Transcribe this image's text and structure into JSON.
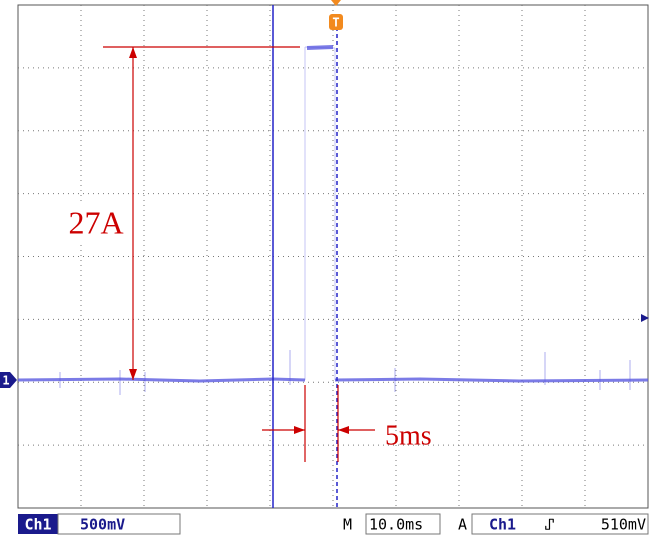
{
  "screen": {
    "trigger_marker": "T",
    "channel_marker": "1"
  },
  "annotations": {
    "amplitude": "27A",
    "width": "5ms"
  },
  "status_bar": {
    "channel": "Ch1",
    "volts_per_div": "500mV",
    "time_prefix": "M",
    "time_per_div": "10.0ms",
    "trigger_prefix": "A",
    "trigger_channel": "Ch1",
    "trigger_slope": "⑀",
    "trigger_level": "510mV"
  }
}
